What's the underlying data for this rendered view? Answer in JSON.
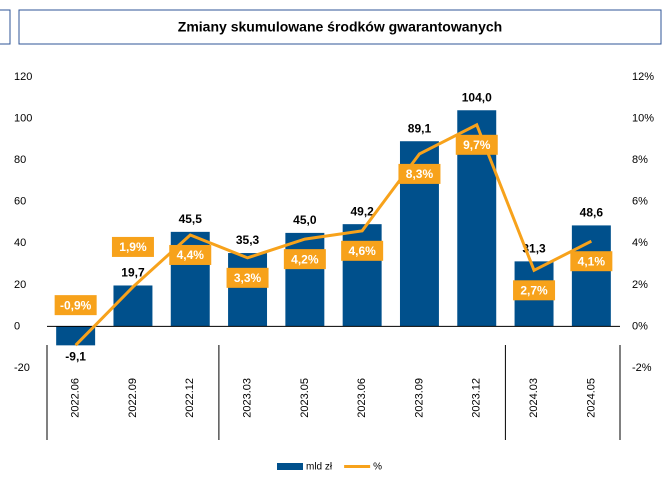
{
  "chart_data": {
    "type": "bar",
    "title": "Zmiany skumulowane środków gwarantowanych",
    "categories": [
      "2022.06",
      "2022.09",
      "2022.12",
      "2023.03",
      "2023.05",
      "2023.06",
      "2023.09",
      "2023.12",
      "2024.03",
      "2024.05"
    ],
    "series": [
      {
        "name": "mld zł",
        "type": "bar",
        "color": "#00508c",
        "values": [
          -9.1,
          19.7,
          45.5,
          35.3,
          45.0,
          49.2,
          89.1,
          104.0,
          31.3,
          48.6
        ],
        "value_labels": [
          "-9,1",
          "19,7",
          "45,5",
          "35,3",
          "45,0",
          "49,2",
          "89,1",
          "104,0",
          "31,3",
          "48,6"
        ]
      },
      {
        "name": "%",
        "type": "line",
        "axis": "y2",
        "color": "#f7a21b",
        "values": [
          -0.9,
          1.9,
          4.4,
          3.3,
          4.2,
          4.6,
          8.3,
          9.7,
          2.7,
          4.1
        ],
        "value_labels": [
          "-0,9%",
          "1,9%",
          "4,4%",
          "3,3%",
          "4,2%",
          "4,6%",
          "8,3%",
          "9,7%",
          "2,7%",
          "4,1%"
        ]
      }
    ],
    "ylim": [
      -20,
      120
    ],
    "yticks": [
      -20,
      0,
      20,
      40,
      60,
      80,
      100,
      120
    ],
    "y2lim": [
      -2,
      12
    ],
    "y2ticks": [
      {
        "value": -2,
        "label": "-2%"
      },
      {
        "value": 0,
        "label": "0%"
      },
      {
        "value": 2,
        "label": "2%"
      },
      {
        "value": 4,
        "label": "4%"
      },
      {
        "value": 6,
        "label": "6%"
      },
      {
        "value": 8,
        "label": "8%"
      },
      {
        "value": 10,
        "label": "10%"
      },
      {
        "value": 12,
        "label": "12%"
      }
    ],
    "legend": "bottom"
  }
}
